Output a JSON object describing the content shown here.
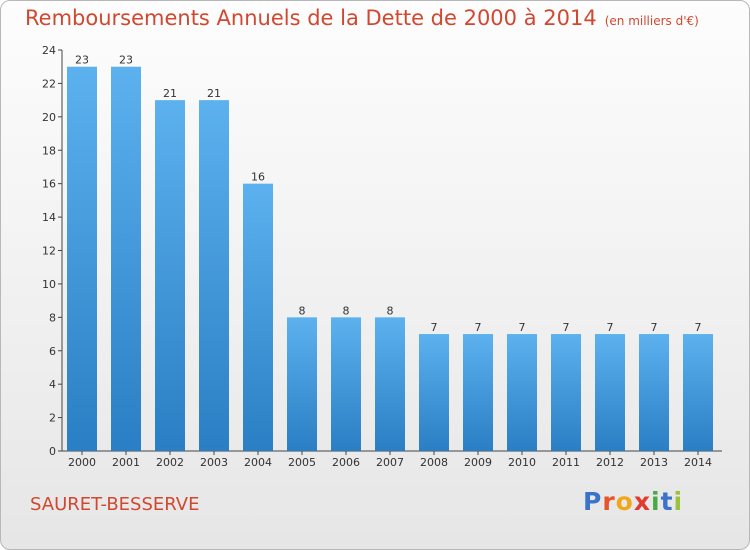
{
  "header": {
    "title": "Remboursements Annuels de la Dette de 2000 à 2014",
    "subtitle": "(en milliers d'€)"
  },
  "footer": {
    "commune": "SAURET-BESSERVE",
    "logo_text": "Proxiti",
    "logo_letters": [
      {
        "ch": "P",
        "color": "#3a73c9"
      },
      {
        "ch": "r",
        "color": "#e8532b"
      },
      {
        "ch": "o",
        "color": "#f0a81a"
      },
      {
        "ch": "x",
        "color": "#e23b2e"
      },
      {
        "ch": "i",
        "color": "#4ba846"
      },
      {
        "ch": "t",
        "color": "#3a73c9"
      },
      {
        "ch": "i",
        "color": "#9ac23c"
      }
    ]
  },
  "colors": {
    "bar_top": "#5cb1ee",
    "bar_bottom": "#2a7fc4",
    "text_red": "#d2472f"
  },
  "chart_data": {
    "type": "bar",
    "categories": [
      "2000",
      "2001",
      "2002",
      "2003",
      "2004",
      "2005",
      "2006",
      "2007",
      "2008",
      "2009",
      "2010",
      "2011",
      "2012",
      "2013",
      "2014"
    ],
    "values": [
      23,
      23,
      21,
      21,
      16,
      8,
      8,
      8,
      7,
      7,
      7,
      7,
      7,
      7,
      7
    ],
    "ylim": [
      0,
      24
    ],
    "yticks": [
      0,
      2,
      4,
      6,
      8,
      10,
      12,
      14,
      16,
      18,
      20,
      22,
      24
    ],
    "grid": false,
    "data_labels": true
  }
}
